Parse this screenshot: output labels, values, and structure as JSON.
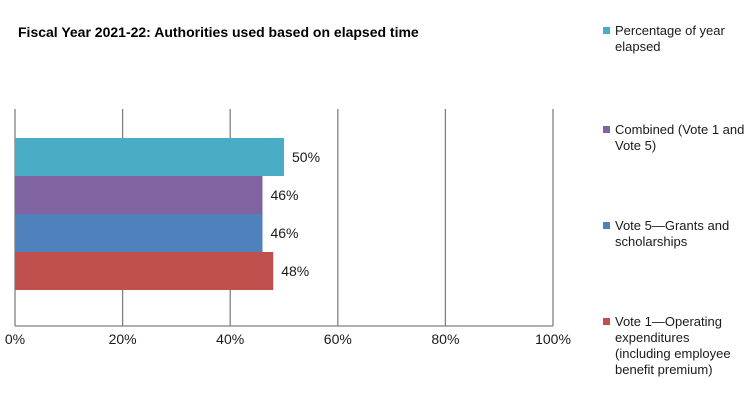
{
  "chart_data": {
    "type": "bar",
    "orientation": "horizontal",
    "title": "Fiscal Year 2021-22: Authorities used based on elapsed time",
    "xlabel": "",
    "ylabel": "",
    "xlim": [
      0,
      100
    ],
    "ticks": [
      "0%",
      "20%",
      "40%",
      "60%",
      "80%",
      "100%"
    ],
    "tick_values": [
      0,
      20,
      40,
      60,
      80,
      100
    ],
    "grid": "vertical",
    "legend_position": "right",
    "series": [
      {
        "name": "Percentage of year elapsed",
        "value": 50,
        "label": "50%",
        "color": "#4BACC6"
      },
      {
        "name": "Combined (Vote 1 and Vote 5)",
        "value": 46,
        "label": "46%",
        "color": "#8064A2"
      },
      {
        "name": "Vote 5—Grants and scholarships",
        "value": 46,
        "label": "46%",
        "color": "#4F81BD"
      },
      {
        "name": "Vote 1—Operating expenditures (including employee benefit premium)",
        "value": 48,
        "label": "48%",
        "color": "#C0504D"
      }
    ]
  }
}
